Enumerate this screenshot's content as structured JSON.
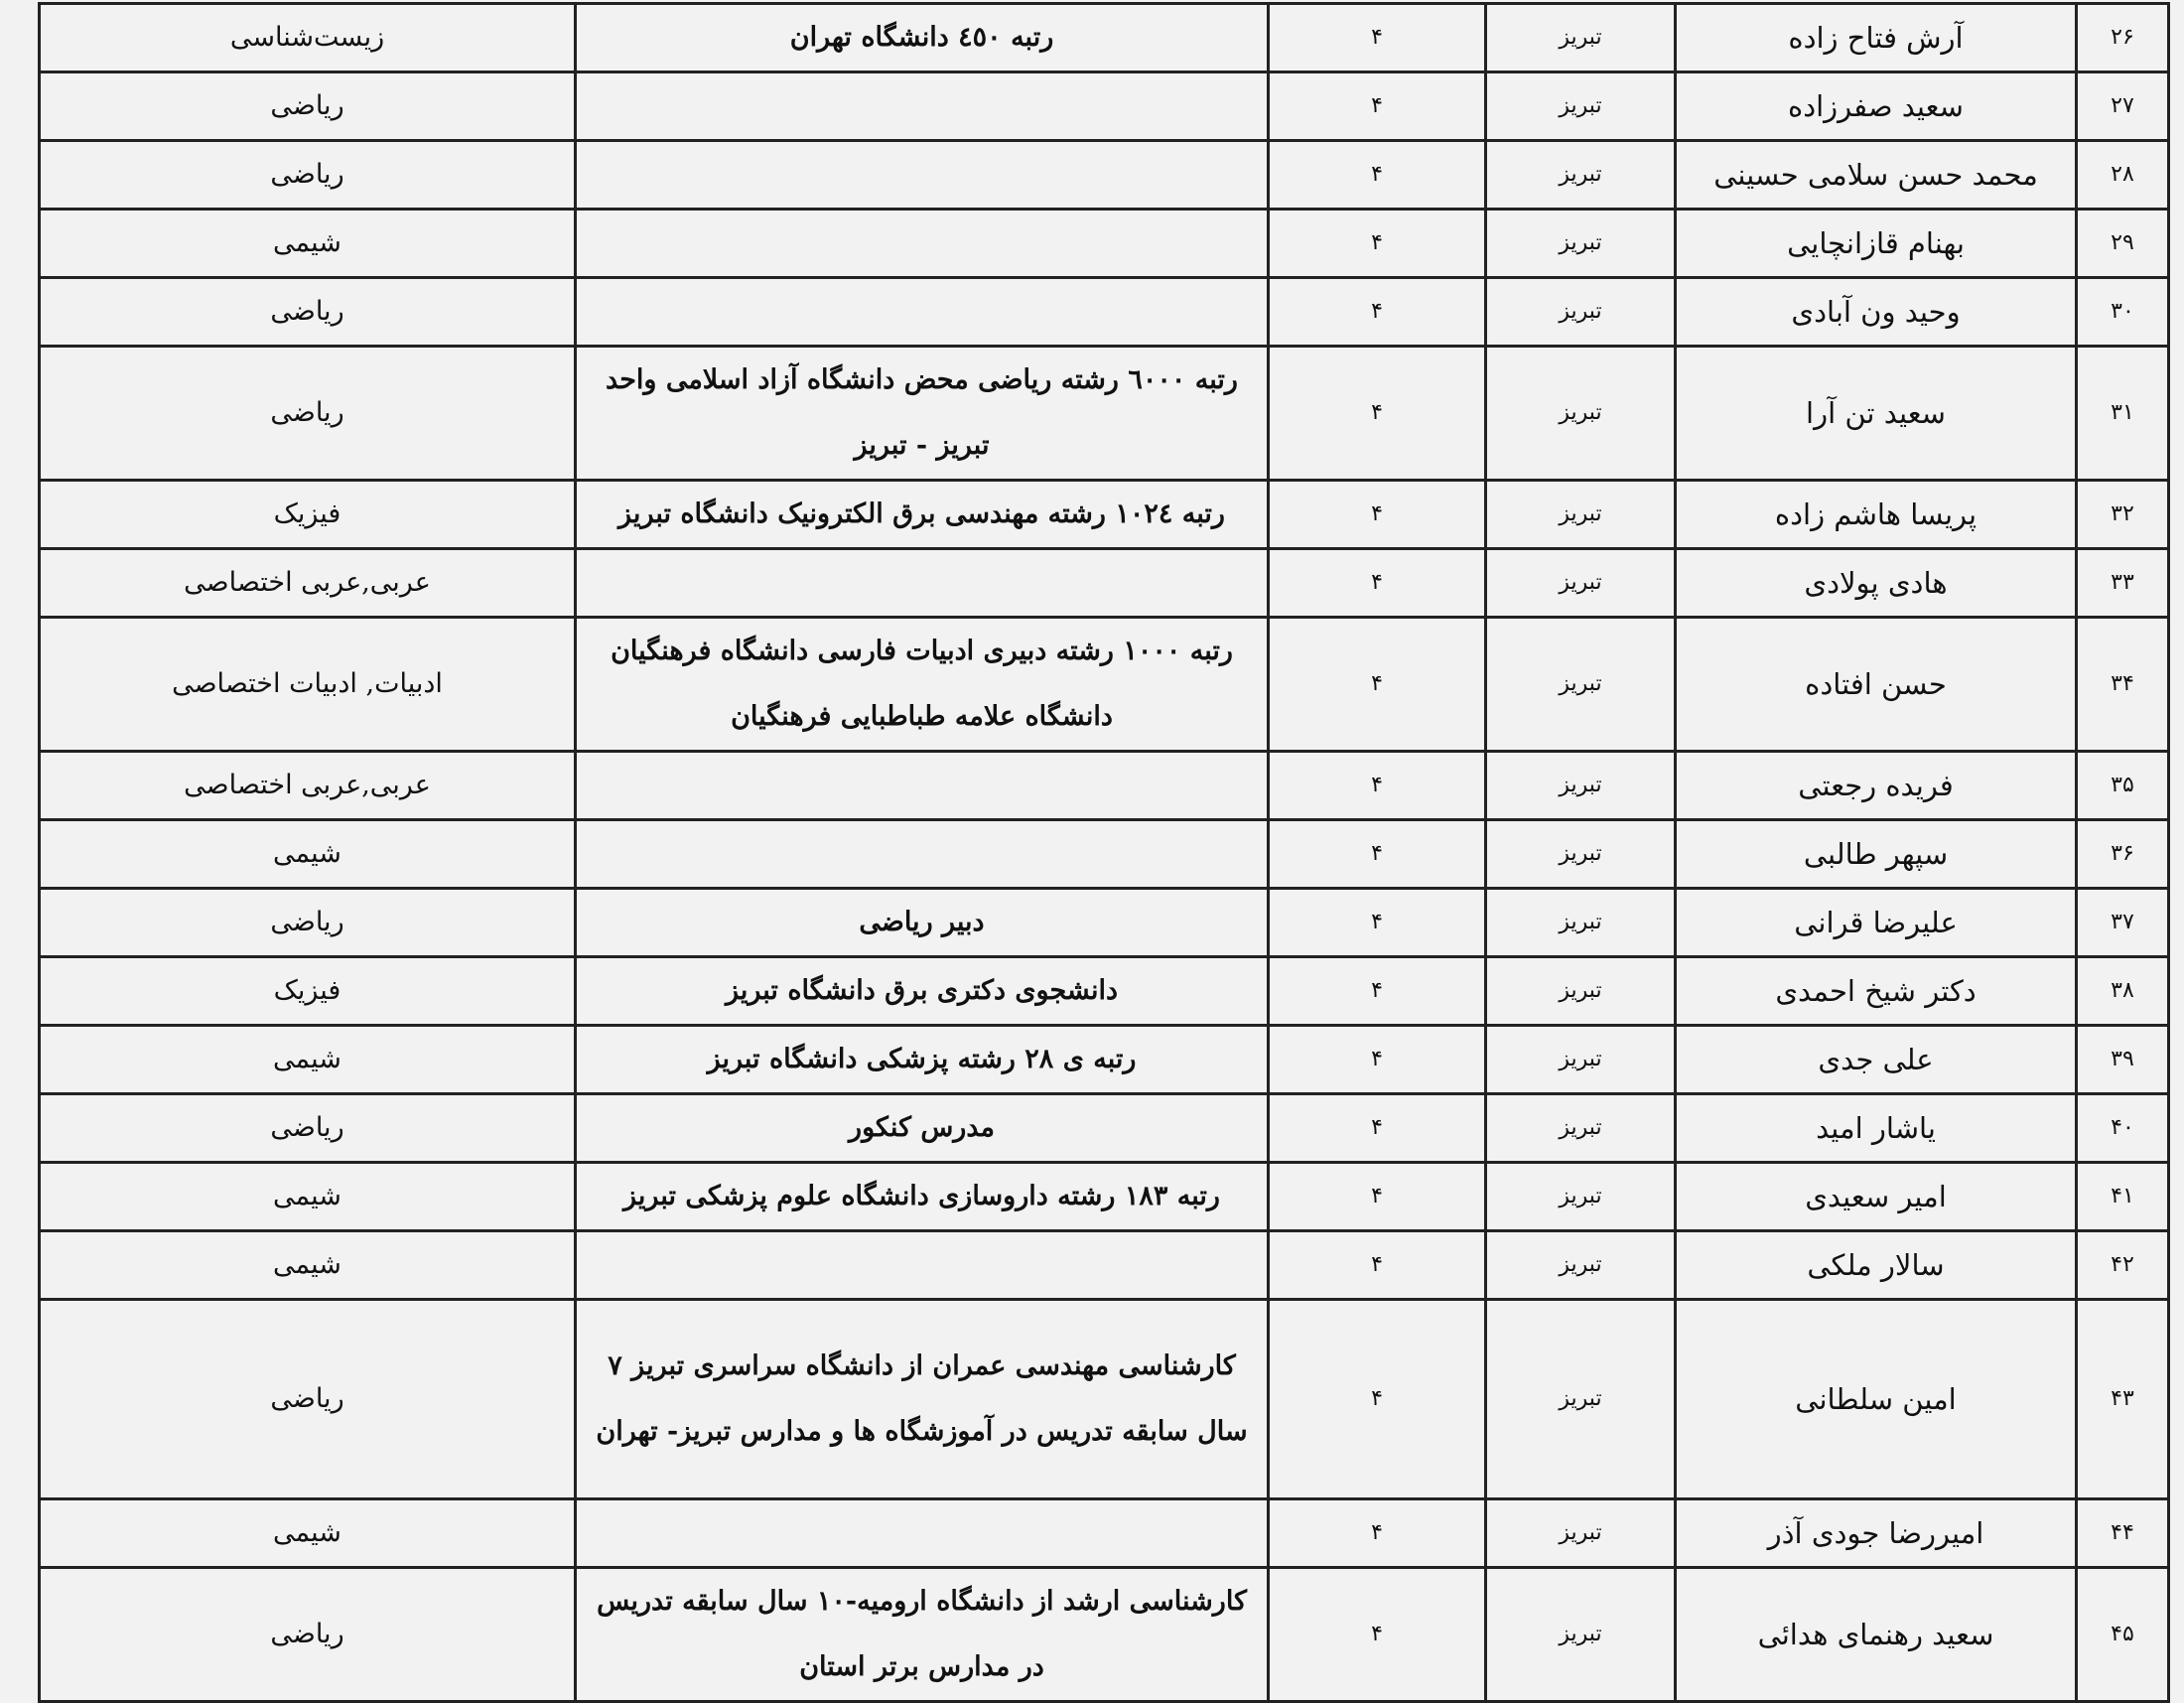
{
  "rows": [
    {
      "num": "۲۶",
      "name": "آرش فتاح زاده",
      "city": "تبریز",
      "count": "۴",
      "desc": "رتبه ٤٥٠  دانشگاه تهران",
      "subject": "زیست‌شناسی",
      "lines": 1
    },
    {
      "num": "۲۷",
      "name": "سعید صفرزاده",
      "city": "تبریز",
      "count": "۴",
      "desc": "",
      "subject": "ریاضی",
      "lines": 1
    },
    {
      "num": "۲۸",
      "name": "محمد حسن سلامی حسینی",
      "city": "تبریز",
      "count": "۴",
      "desc": "",
      "subject": "ریاضی",
      "lines": 1
    },
    {
      "num": "۲۹",
      "name": "بهنام قازانچایی",
      "city": "تبریز",
      "count": "۴",
      "desc": "",
      "subject": "شیمی",
      "lines": 1
    },
    {
      "num": "۳۰",
      "name": "وحید ون آبادی",
      "city": "تبریز",
      "count": "۴",
      "desc": "",
      "subject": "ریاضی",
      "lines": 1
    },
    {
      "num": "۳۱",
      "name": "سعید تن آرا",
      "city": "تبریز",
      "count": "۴",
      "desc": "رتبه ٦٠٠٠ رشته ریاضی محض دانشگاه آزاد اسلامی واحد تبریز - تبریز",
      "subject": "ریاضی",
      "lines": 2
    },
    {
      "num": "۳۲",
      "name": "پریسا هاشم زاده",
      "city": "تبریز",
      "count": "۴",
      "desc": "رتبه ١٠٢٤ رشته مهندسی برق الکترونیک  دانشگاه تبریز",
      "subject": "فیزیک",
      "lines": 1
    },
    {
      "num": "۳۳",
      "name": "هادی پولادی",
      "city": "تبریز",
      "count": "۴",
      "desc": "",
      "subject": "عربی,عربی اختصاصی",
      "lines": 1
    },
    {
      "num": "۳۴",
      "name": "حسن افتاده",
      "city": "تبریز",
      "count": "۴",
      "desc": "رتبه ١٠٠٠ رشته دبیری ادبیات فارسی دانشگاه فرهنگیان دانشگاه علامه طباطبایی فرهنگیان",
      "subject": "ادبیات, ادبیات اختصاصی",
      "lines": 2
    },
    {
      "num": "۳۵",
      "name": "فریده رجعتی",
      "city": "تبریز",
      "count": "۴",
      "desc": "",
      "subject": "عربی,عربی اختصاصی",
      "lines": 1
    },
    {
      "num": "۳۶",
      "name": "سپهر طالبی",
      "city": "تبریز",
      "count": "۴",
      "desc": "",
      "subject": "شیمی",
      "lines": 1
    },
    {
      "num": "۳۷",
      "name": "علیرضا قرانی",
      "city": "تبریز",
      "count": "۴",
      "desc": "دبیر ریاضی",
      "subject": "ریاضی",
      "lines": 1
    },
    {
      "num": "۳۸",
      "name": "دکتر شیخ احمدی",
      "city": "تبریز",
      "count": "۴",
      "desc": "دانشجوی دکتری برق دانشگاه تبریز",
      "subject": "فیزیک",
      "lines": 1
    },
    {
      "num": "۳۹",
      "name": "علی جدی",
      "city": "تبریز",
      "count": "۴",
      "desc": "رتبه ی ۲۸ رشته پزشکی دانشگاه تبریز",
      "subject": "شیمی",
      "lines": 1
    },
    {
      "num": "۴۰",
      "name": "یاشار امید",
      "city": "تبریز",
      "count": "۴",
      "desc": "مدرس کنکور",
      "subject": "ریاضی",
      "lines": 1
    },
    {
      "num": "۴۱",
      "name": "امیر سعیدی",
      "city": "تبریز",
      "count": "۴",
      "desc": "رتبه ۱۸۳ رشته داروسازی دانشگاه علوم  پزشکی تبریز",
      "subject": "شیمی",
      "lines": 1
    },
    {
      "num": "۴۲",
      "name": "سالار ملکی",
      "city": "تبریز",
      "count": "۴",
      "desc": "",
      "subject": "شیمی",
      "lines": 1
    },
    {
      "num": "۴۳",
      "name": "امین سلطانی",
      "city": "تبریز",
      "count": "۴",
      "desc": "کارشناسی مهندسی عمران از دانشگاه سراسری تبریز  ۷ سال سابقه تدریس در آموزشگاه ها و مدارس تبریز- تهران",
      "subject": "ریاضی",
      "lines": 3
    },
    {
      "num": "۴۴",
      "name": "امیررضا جودی آذر",
      "city": "تبریز",
      "count": "۴",
      "desc": "",
      "subject": "شیمی",
      "lines": 1
    },
    {
      "num": "۴۵",
      "name": "سعید رهنمای هدائی",
      "city": "تبریز",
      "count": "۴",
      "desc": "کارشناسی ارشد از دانشگاه ارومیه-۱۰ سال سابقه تدریس در مدارس برتر استان",
      "subject": "ریاضی",
      "lines": 2
    }
  ]
}
